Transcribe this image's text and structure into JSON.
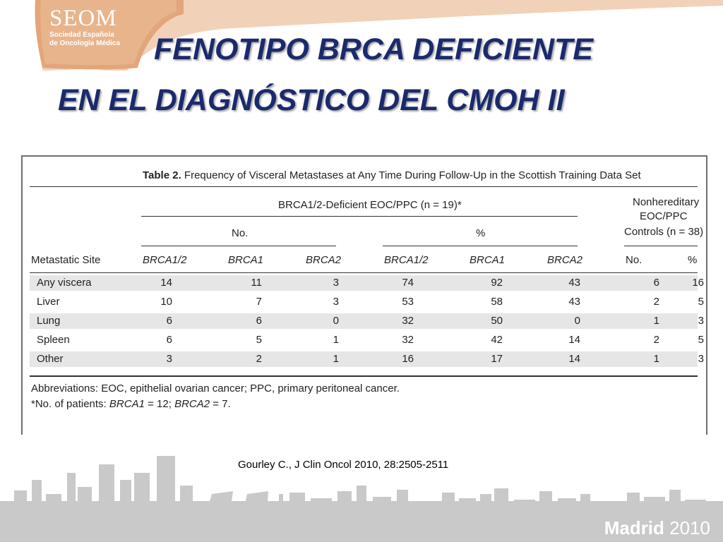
{
  "logo": {
    "name": "SEOM",
    "line1": "Sociedad Española",
    "line2": "de Oncología Médica"
  },
  "title": {
    "line1": "FENOTIPO BRCA DEFICIENTE",
    "line2": "EN EL DIAGNÓSTICO DEL CMOH II"
  },
  "table": {
    "caption_label": "Table 2.",
    "caption_text": "Frequency of Visceral Metastases at Any Time During Follow-Up in the Scottish Training Data Set",
    "group_deficient": "BRCA1/2-Deficient EOC/PPC (n = 19)*",
    "group_nonhereditary_1": "Nonhereditary",
    "group_nonhereditary_2": "EOC/PPC",
    "group_nonhereditary_3": "Controls (n = 38)",
    "sub_no": "No.",
    "sub_pct": "%",
    "col_site": "Metastatic Site",
    "col_brca12": "BRCA1/2",
    "col_brca1": "BRCA1",
    "col_brca2": "BRCA2",
    "col_no": "No.",
    "col_pct": "%",
    "rows": [
      {
        "site": "Any viscera",
        "v": [
          "14",
          "11",
          "3",
          "74",
          "92",
          "43",
          "6",
          "16"
        ]
      },
      {
        "site": "Liver",
        "v": [
          "10",
          "7",
          "3",
          "53",
          "58",
          "43",
          "2",
          "5"
        ]
      },
      {
        "site": "Lung",
        "v": [
          "6",
          "6",
          "0",
          "32",
          "50",
          "0",
          "1",
          "3"
        ]
      },
      {
        "site": "Spleen",
        "v": [
          "6",
          "5",
          "1",
          "32",
          "42",
          "14",
          "2",
          "5"
        ]
      },
      {
        "site": "Other",
        "v": [
          "3",
          "2",
          "1",
          "16",
          "17",
          "14",
          "1",
          "3"
        ]
      }
    ],
    "footnote_1": "Abbreviations: EOC, epithelial ovarian cancer; PPC, primary peritoneal cancer.",
    "footnote_2_prefix": "*No. of patients: ",
    "footnote_2_b1": "BRCA1",
    "footnote_2_mid": " = 12; ",
    "footnote_2_b2": "BRCA2",
    "footnote_2_suffix": " = 7."
  },
  "citation": "Gourley C., J Clin Oncol 2010, 28:2505-2511",
  "footer": {
    "city": "Madrid",
    "year": "2010"
  },
  "colors": {
    "title": "#1a2a6c",
    "ribbon": "#e8b48c",
    "skyline": "#c8c8c8",
    "row_shade": "#e6e6e6"
  }
}
